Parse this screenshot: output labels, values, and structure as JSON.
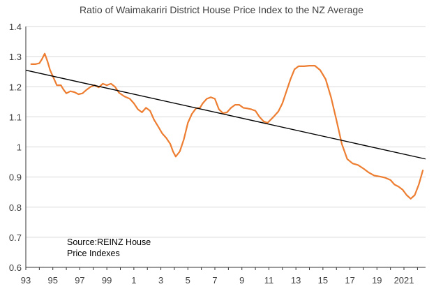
{
  "chart_data": {
    "type": "line",
    "title": "Ratio of Waimakariri District House Price Index to the NZ Average",
    "xlabel": "",
    "ylabel": "",
    "x_tick_labels": [
      "93",
      "95",
      "97",
      "99",
      "1",
      "3",
      "5",
      "7",
      "9",
      "11",
      "13",
      "15",
      "17",
      "19",
      "2021"
    ],
    "x_tick_years": [
      1993,
      1995,
      1997,
      1999,
      2001,
      2003,
      2005,
      2007,
      2009,
      2011,
      2013,
      2015,
      2017,
      2019,
      2021
    ],
    "xlim": [
      1993,
      2022.6
    ],
    "ylim": [
      0.6,
      1.4
    ],
    "y_ticks": [
      0.6,
      0.7,
      0.8,
      0.9,
      1,
      1.1,
      1.2,
      1.3,
      1.4
    ],
    "grid": "horizontal",
    "series": [
      {
        "name": "",
        "color": "#ED7D31",
        "x": [
          1993.4,
          1993.7,
          1994.0,
          1994.2,
          1994.4,
          1994.6,
          1994.8,
          1995.0,
          1995.3,
          1995.6,
          1995.8,
          1996.0,
          1996.3,
          1996.6,
          1996.9,
          1997.2,
          1997.5,
          1997.8,
          1998.1,
          1998.4,
          1998.7,
          1999.0,
          1999.3,
          1999.6,
          1999.9,
          2000.3,
          2000.7,
          2001.0,
          2001.3,
          2001.6,
          2001.9,
          2002.2,
          2002.5,
          2002.8,
          2003.1,
          2003.4,
          2003.7,
          2003.9,
          2004.1,
          2004.4,
          2004.7,
          2005.0,
          2005.3,
          2005.6,
          2005.9,
          2006.1,
          2006.4,
          2006.7,
          2007.0,
          2007.3,
          2007.6,
          2007.9,
          2008.2,
          2008.5,
          2008.8,
          2009.1,
          2009.4,
          2009.7,
          2010.0,
          2010.3,
          2010.6,
          2010.9,
          2011.3,
          2011.7,
          2012.0,
          2012.3,
          2012.6,
          2012.9,
          2013.2,
          2013.6,
          2014.0,
          2014.4,
          2014.8,
          2015.2,
          2015.6,
          2016.0,
          2016.4,
          2016.8,
          2017.2,
          2017.6,
          2018.0,
          2018.4,
          2018.8,
          2019.2,
          2019.6,
          2020.0,
          2020.3,
          2020.6,
          2020.9,
          2021.2,
          2021.5,
          2021.8,
          2022.1,
          2022.4
        ],
        "y": [
          1.275,
          1.275,
          1.278,
          1.292,
          1.31,
          1.285,
          1.255,
          1.235,
          1.205,
          1.205,
          1.19,
          1.178,
          1.185,
          1.182,
          1.175,
          1.178,
          1.19,
          1.2,
          1.205,
          1.198,
          1.21,
          1.205,
          1.21,
          1.2,
          1.18,
          1.168,
          1.16,
          1.145,
          1.125,
          1.115,
          1.13,
          1.12,
          1.09,
          1.068,
          1.045,
          1.03,
          1.01,
          0.985,
          0.968,
          0.985,
          1.025,
          1.08,
          1.11,
          1.128,
          1.13,
          1.145,
          1.16,
          1.165,
          1.16,
          1.125,
          1.112,
          1.115,
          1.13,
          1.14,
          1.14,
          1.13,
          1.128,
          1.125,
          1.12,
          1.1,
          1.085,
          1.08,
          1.098,
          1.118,
          1.145,
          1.185,
          1.225,
          1.258,
          1.268,
          1.268,
          1.27,
          1.27,
          1.255,
          1.225,
          1.165,
          1.09,
          1.01,
          0.96,
          0.945,
          0.94,
          0.928,
          0.915,
          0.905,
          0.902,
          0.898,
          0.89,
          0.875,
          0.868,
          0.858,
          0.84,
          0.828,
          0.84,
          0.875,
          0.922
        ]
      }
    ],
    "trendline": {
      "color": "#000000",
      "x": [
        1993,
        2022.6
      ],
      "y": [
        1.255,
        0.96
      ]
    },
    "annotation": "Source:REINZ House\nPrice Indexes"
  }
}
